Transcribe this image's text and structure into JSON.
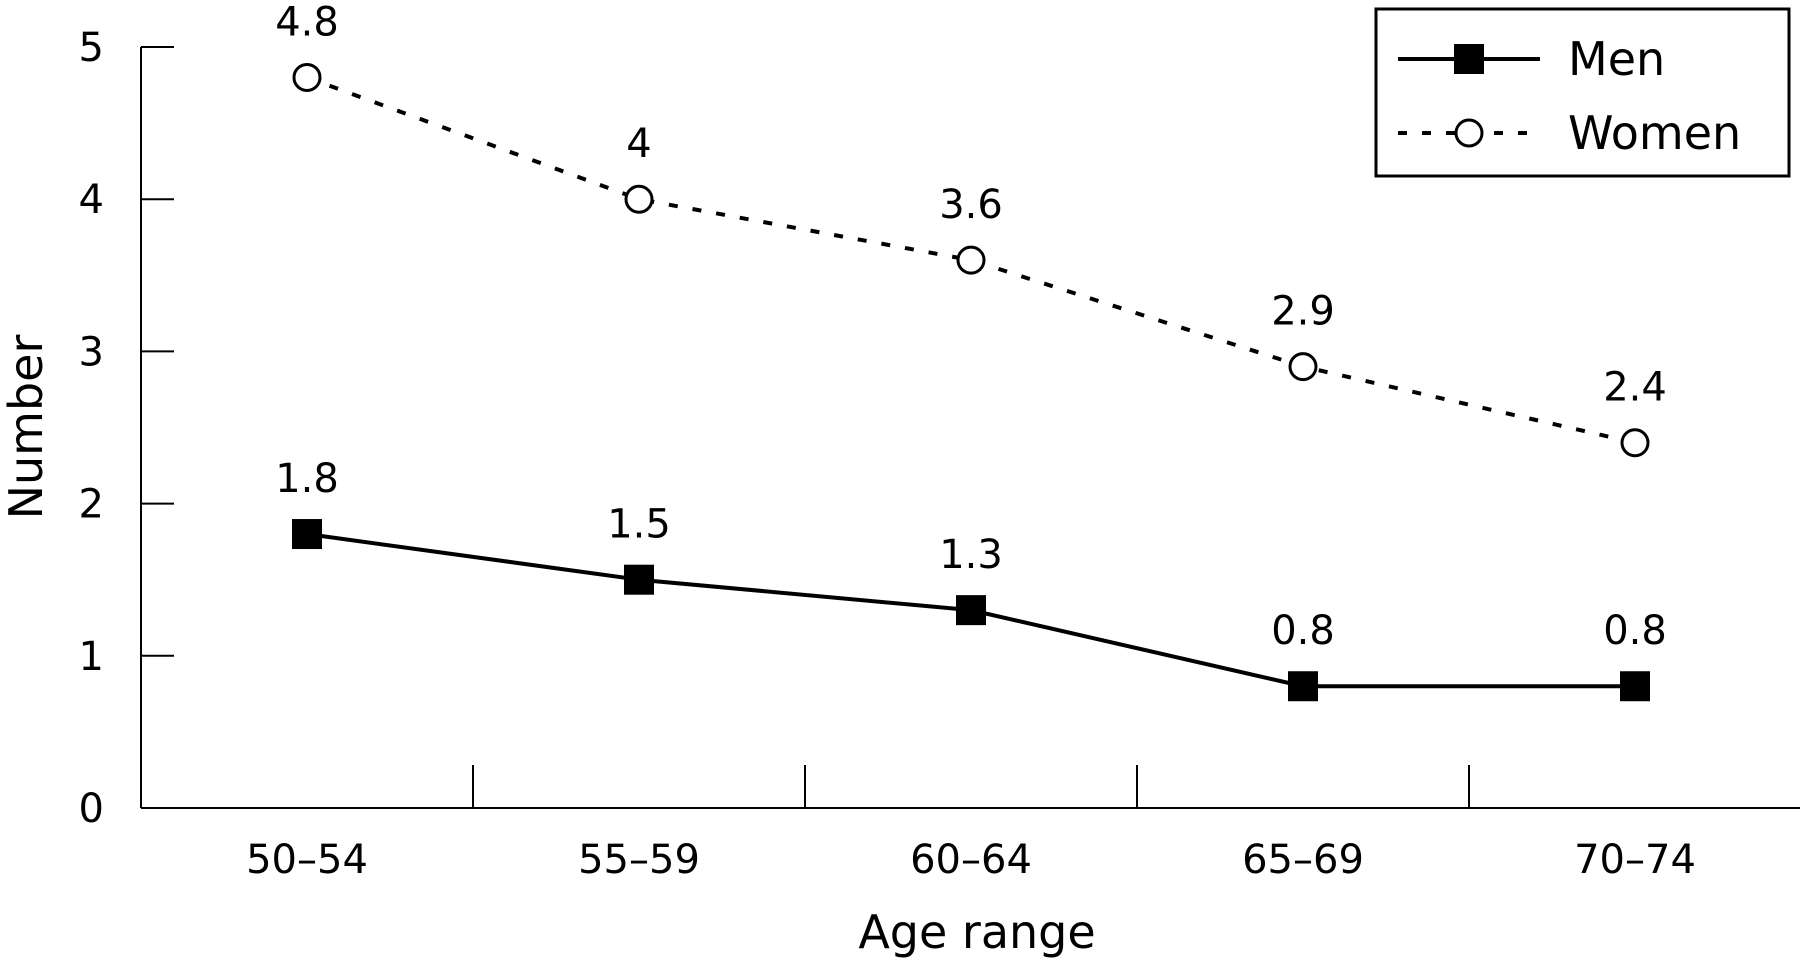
{
  "chart_data": {
    "type": "line",
    "title": "",
    "xlabel": "Age range",
    "ylabel": "Number",
    "categories": [
      "50–54",
      "55–59",
      "60–64",
      "65–69",
      "70–74"
    ],
    "ylim": [
      0,
      5
    ],
    "yticks": [
      0,
      1,
      2,
      3,
      4,
      5
    ],
    "grid": false,
    "legend_position": "top-right",
    "series": [
      {
        "name": "Men",
        "values": [
          1.8,
          1.5,
          1.3,
          0.8,
          0.8
        ],
        "value_labels": [
          "1.8",
          "1.5",
          "1.3",
          "0.8",
          "0.8"
        ],
        "line_style": "solid",
        "marker": "filled-square",
        "color": "#000000"
      },
      {
        "name": "Women",
        "values": [
          4.8,
          4.0,
          3.6,
          2.9,
          2.4
        ],
        "value_labels": [
          "4.8",
          "4",
          "3.6",
          "2.9",
          "2.4"
        ],
        "line_style": "dotted",
        "marker": "open-circle",
        "color": "#000000"
      }
    ]
  }
}
